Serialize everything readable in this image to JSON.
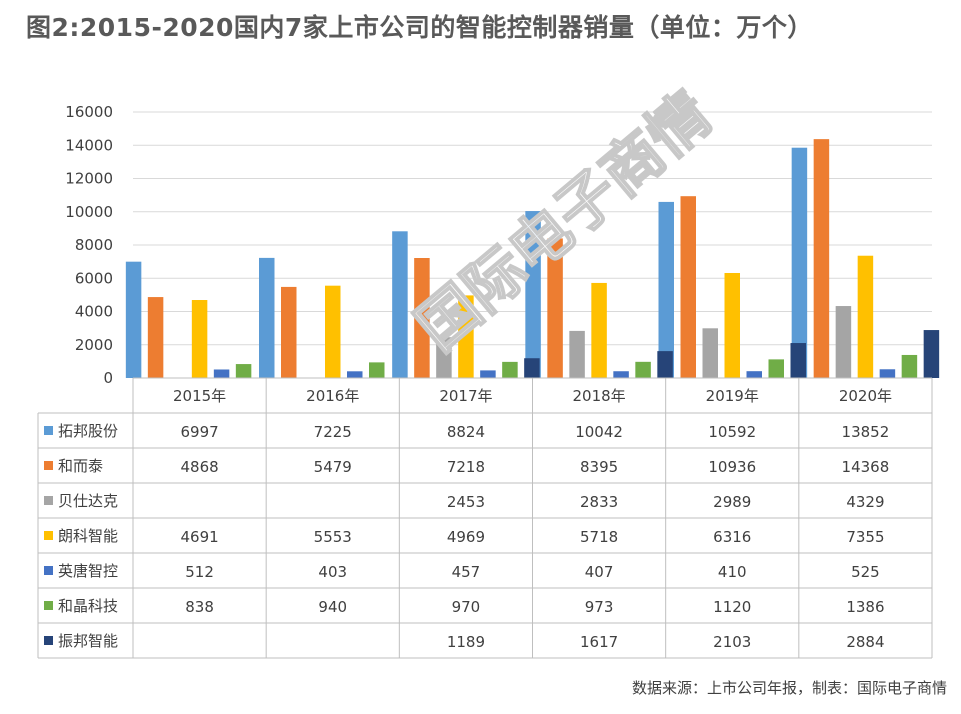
{
  "chart_data": {
    "type": "bar",
    "title": "图2:2015-2020国内7家上市公司的智能控制器销量（单位：万个）",
    "categories": [
      "2015年",
      "2016年",
      "2017年",
      "2018年",
      "2019年",
      "2020年"
    ],
    "ylim": [
      0,
      16000
    ],
    "yticks": [
      "0",
      "2000",
      "4000",
      "6000",
      "8000",
      "10000",
      "12000",
      "14000",
      "16000"
    ],
    "grid": true,
    "legend_position": "data-table",
    "series": [
      {
        "name": "拓邦股份",
        "color": "#5b9bd5",
        "values": [
          6997,
          7225,
          8824,
          10042,
          10592,
          13852
        ]
      },
      {
        "name": "和而泰",
        "color": "#ed7d31",
        "values": [
          4868,
          5479,
          7218,
          8395,
          10936,
          14368
        ]
      },
      {
        "name": "贝仕达克",
        "color": "#a5a5a5",
        "values": [
          null,
          null,
          2453,
          2833,
          2989,
          4329
        ]
      },
      {
        "name": "朗科智能",
        "color": "#ffc000",
        "values": [
          4691,
          5553,
          4969,
          5718,
          6316,
          7355
        ]
      },
      {
        "name": "英唐智控",
        "color": "#4472c4",
        "values": [
          512,
          403,
          457,
          407,
          410,
          525
        ]
      },
      {
        "name": "和晶科技",
        "color": "#70ad47",
        "values": [
          838,
          940,
          970,
          973,
          1120,
          1386
        ]
      },
      {
        "name": "振邦智能",
        "color": "#264478",
        "values": [
          null,
          null,
          1189,
          1617,
          2103,
          2884
        ]
      }
    ]
  },
  "source": "数据来源：上市公司年报，制表：国际电子商情",
  "watermark": "国际电子商情"
}
